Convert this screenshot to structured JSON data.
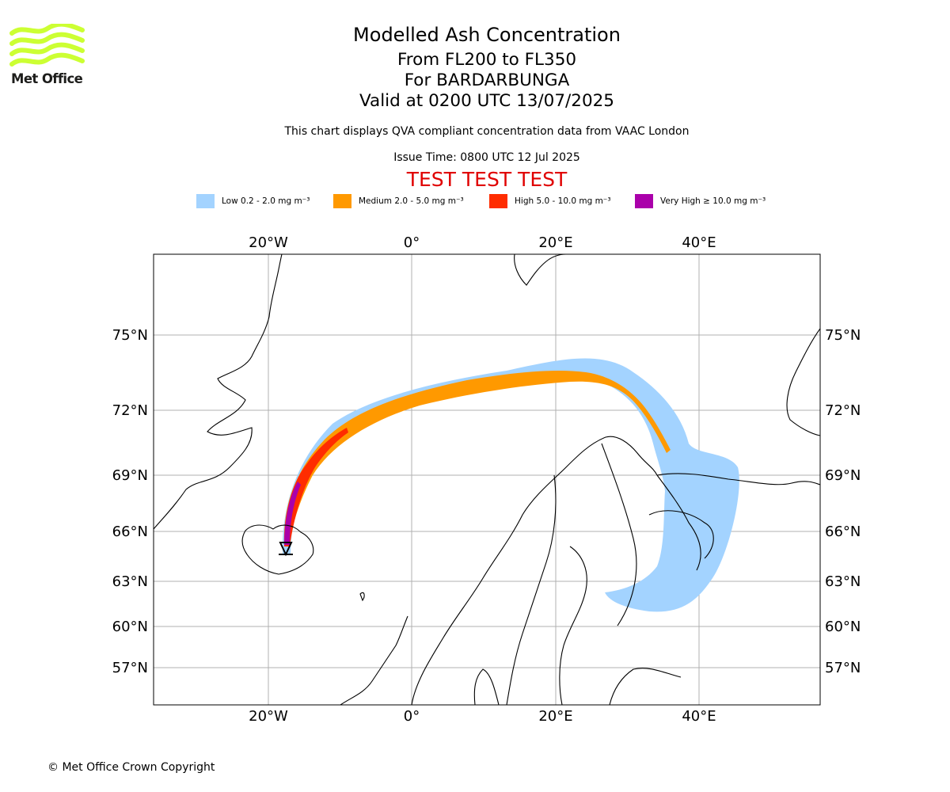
{
  "logo": {
    "text": "Met Office",
    "icon": "met-office-wave-logo",
    "color": "#ccff33"
  },
  "header": {
    "title": "Modelled Ash Concentration",
    "flight_levels": "From FL200 to FL350",
    "volcano": "For BARDARBUNGA",
    "valid_time": "Valid at 0200 UTC 13/07/2025",
    "note": "This chart displays QVA compliant concentration data from VAAC London",
    "issue_time": "Issue Time: 0800 UTC 12 Jul 2025",
    "test_banner": "TEST TEST TEST"
  },
  "legend": [
    {
      "label": "Low 0.2 - 2.0 mg m⁻³",
      "color": "#a3d3ff"
    },
    {
      "label": "Medium 2.0 - 5.0 mg m⁻³",
      "color": "#ff9900"
    },
    {
      "label": "High 5.0 - 10.0 mg m⁻³",
      "color": "#ff2c00"
    },
    {
      "label": "Very High ≥ 10.0 mg m⁻³",
      "color": "#aa00aa"
    }
  ],
  "map": {
    "lon_labels": [
      "20°W",
      "0°",
      "20°E",
      "40°E"
    ],
    "lat_labels": [
      "75°N",
      "72°N",
      "69°N",
      "66°N",
      "63°N",
      "60°N",
      "57°N"
    ],
    "source_marker": "volcano-source-icon"
  },
  "footer": {
    "copyright": "© Met Office Crown Copyright"
  }
}
